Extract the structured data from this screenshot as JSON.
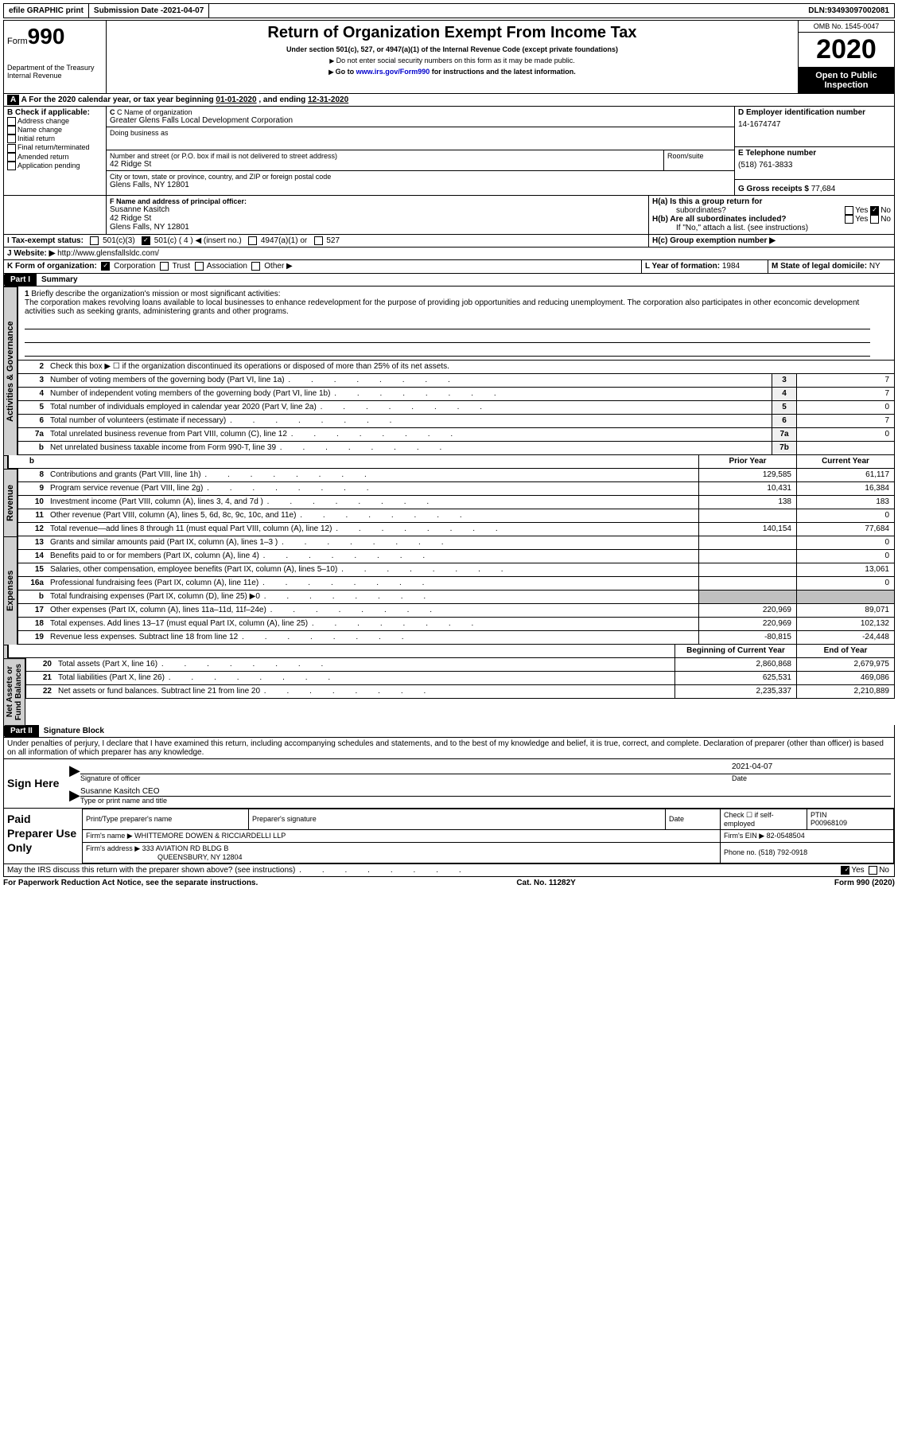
{
  "topbar": {
    "efile": "efile GRAPHIC print",
    "subdate_lbl": "Submission Date - ",
    "subdate": "2021-04-07",
    "dln_lbl": "DLN: ",
    "dln": "93493097002081"
  },
  "header": {
    "form_label": "Form",
    "form_num": "990",
    "dept": "Department of the Treasury\nInternal Revenue",
    "title": "Return of Organization Exempt From Income Tax",
    "sub1": "Under section 501(c), 527, or 4947(a)(1) of the Internal Revenue Code (except private foundations)",
    "sub2": "Do not enter social security numbers on this form as it may be made public.",
    "sub3_pre": "Go to ",
    "sub3_link": "www.irs.gov/Form990",
    "sub3_post": " for instructions and the latest information.",
    "omb": "OMB No. 1545-0047",
    "year": "2020",
    "inspect": "Open to Public Inspection"
  },
  "periodA": {
    "pre": "A   For the 2020 calendar year, or tax year beginning ",
    "begin": "01-01-2020",
    "mid": "  , and ending ",
    "end": "12-31-2020"
  },
  "boxB": {
    "title": "B Check if applicable:",
    "items": [
      "Address change",
      "Name change",
      "Initial return",
      "Final return/terminated",
      "Amended return",
      "Application pending"
    ]
  },
  "boxC": {
    "lbl": "C Name of organization",
    "name": "Greater Glens Falls Local Development Corporation",
    "dba_lbl": "Doing business as",
    "addr_lbl": "Number and street (or P.O. box if mail is not delivered to street address)",
    "room_lbl": "Room/suite",
    "addr": "42 Ridge St",
    "city_lbl": "City or town, state or province, country, and ZIP or foreign postal code",
    "city": "Glens Falls, NY  12801"
  },
  "boxD": {
    "lbl": "D Employer identification number",
    "val": "14-1674747"
  },
  "boxE": {
    "lbl": "E Telephone number",
    "val": "(518) 761-3833"
  },
  "boxG": {
    "lbl": "G Gross receipts $ ",
    "val": "77,684"
  },
  "boxF": {
    "lbl": "F  Name and address of principal officer:",
    "name": "Susanne Kasitch",
    "addr1": "42 Ridge St",
    "addr2": "Glens Falls, NY  12801"
  },
  "boxH": {
    "a": "H(a)  Is this a group return for",
    "a2": "subordinates?",
    "b": "H(b)  Are all subordinates included?",
    "bnote": "If \"No,\" attach a list. (see instructions)",
    "c": "H(c)  Group exemption number ▶",
    "yes": "Yes",
    "no": "No"
  },
  "boxI": {
    "lbl": "I   Tax-exempt status:",
    "c3": "501(c)(3)",
    "c": "501(c) ( 4 ) ◀ (insert no.)",
    "a1": "4947(a)(1) or",
    "s527": "527"
  },
  "boxJ": {
    "lbl": "J   Website: ▶",
    "val": "http://www.glensfallsldc.com/"
  },
  "boxK": {
    "lbl": "K Form of organization:",
    "corp": "Corporation",
    "trust": "Trust",
    "assoc": "Association",
    "other": "Other ▶"
  },
  "boxL": {
    "lbl": "L Year of formation: ",
    "val": "1984"
  },
  "boxM": {
    "lbl": "M State of legal domicile: ",
    "val": "NY"
  },
  "part1": {
    "num": "Part I",
    "title": "Summary"
  },
  "l1": {
    "num": "1",
    "txt": "Briefly describe the organization's mission or most significant activities:",
    "mission": "The corporation makes revolving loans available to local businesses to enhance redevelopment for the purpose of providing job opportunities and reducing unemployment. The corporation also participates in other econcomic development activities such as seeking grants, administering grants and other programs."
  },
  "l2": {
    "num": "2",
    "txt": "Check this box ▶ ☐  if the organization discontinued its operations or disposed of more than 25% of its net assets."
  },
  "lines_ag": [
    {
      "n": "3",
      "t": "Number of voting members of the governing body (Part VI, line 1a)",
      "b": "3",
      "v": "7"
    },
    {
      "n": "4",
      "t": "Number of independent voting members of the governing body (Part VI, line 1b)",
      "b": "4",
      "v": "7"
    },
    {
      "n": "5",
      "t": "Total number of individuals employed in calendar year 2020 (Part V, line 2a)",
      "b": "5",
      "v": "0"
    },
    {
      "n": "6",
      "t": "Total number of volunteers (estimate if necessary)",
      "b": "6",
      "v": "7"
    },
    {
      "n": "7a",
      "t": "Total unrelated business revenue from Part VIII, column (C), line 12",
      "b": "7a",
      "v": "0"
    },
    {
      "n": "b",
      "t": "Net unrelated business taxable income from Form 990-T, line 39",
      "b": "7b",
      "v": ""
    }
  ],
  "colhdr": {
    "prior": "Prior Year",
    "curr": "Current Year",
    "beg": "Beginning of Current Year",
    "end": "End of Year"
  },
  "rev": [
    {
      "n": "8",
      "t": "Contributions and grants (Part VIII, line 1h)",
      "p": "129,585",
      "c": "61,117"
    },
    {
      "n": "9",
      "t": "Program service revenue (Part VIII, line 2g)",
      "p": "10,431",
      "c": "16,384"
    },
    {
      "n": "10",
      "t": "Investment income (Part VIII, column (A), lines 3, 4, and 7d )",
      "p": "138",
      "c": "183"
    },
    {
      "n": "11",
      "t": "Other revenue (Part VIII, column (A), lines 5, 6d, 8c, 9c, 10c, and 11e)",
      "p": "",
      "c": "0"
    },
    {
      "n": "12",
      "t": "Total revenue—add lines 8 through 11 (must equal Part VIII, column (A), line 12)",
      "p": "140,154",
      "c": "77,684"
    }
  ],
  "exp": [
    {
      "n": "13",
      "t": "Grants and similar amounts paid (Part IX, column (A), lines 1–3 )",
      "p": "",
      "c": "0"
    },
    {
      "n": "14",
      "t": "Benefits paid to or for members (Part IX, column (A), line 4)",
      "p": "",
      "c": "0"
    },
    {
      "n": "15",
      "t": "Salaries, other compensation, employee benefits (Part IX, column (A), lines 5–10)",
      "p": "",
      "c": "13,061"
    },
    {
      "n": "16a",
      "t": "Professional fundraising fees (Part IX, column (A), line 11e)",
      "p": "",
      "c": "0"
    },
    {
      "n": "b",
      "t": "Total fundraising expenses (Part IX, column (D), line 25) ▶0",
      "p": "shade",
      "c": "shade"
    },
    {
      "n": "17",
      "t": "Other expenses (Part IX, column (A), lines 11a–11d, 11f–24e)",
      "p": "220,969",
      "c": "89,071"
    },
    {
      "n": "18",
      "t": "Total expenses. Add lines 13–17 (must equal Part IX, column (A), line 25)",
      "p": "220,969",
      "c": "102,132"
    },
    {
      "n": "19",
      "t": "Revenue less expenses. Subtract line 18 from line 12",
      "p": "-80,815",
      "c": "-24,448"
    }
  ],
  "na": [
    {
      "n": "20",
      "t": "Total assets (Part X, line 16)",
      "p": "2,860,868",
      "c": "2,679,975"
    },
    {
      "n": "21",
      "t": "Total liabilities (Part X, line 26)",
      "p": "625,531",
      "c": "469,086"
    },
    {
      "n": "22",
      "t": "Net assets or fund balances. Subtract line 21 from line 20",
      "p": "2,235,337",
      "c": "2,210,889"
    }
  ],
  "vtabs": {
    "ag": "Activities & Governance",
    "rev": "Revenue",
    "exp": "Expenses",
    "na": "Net Assets or\nFund Balances"
  },
  "part2": {
    "num": "Part II",
    "title": "Signature Block",
    "decl": "Under penalties of perjury, I declare that I have examined this return, including accompanying schedules and statements, and to the best of my knowledge and belief, it is true, correct, and complete. Declaration of preparer (other than officer) is based on all information of which preparer has any knowledge."
  },
  "sign": {
    "here": "Sign Here",
    "sig_lbl": "Signature of officer",
    "date_lbl": "Date",
    "date": "2021-04-07",
    "name": "Susanne Kasitch CEO",
    "name_lbl": "Type or print name and title"
  },
  "prep": {
    "title": "Paid Preparer Use Only",
    "pname_lbl": "Print/Type preparer's name",
    "psig_lbl": "Preparer's signature",
    "pdate_lbl": "Date",
    "self_lbl": "Check ☐ if self-employed",
    "ptin_lbl": "PTIN",
    "ptin": "P00968109",
    "firm_lbl": "Firm's name   ▶",
    "firm": "WHITTEMORE DOWEN & RICCIARDELLI LLP",
    "ein_lbl": "Firm's EIN ▶",
    "ein": "82-0548504",
    "addr_lbl": "Firm's address ▶",
    "addr1": "333 AVIATION RD BLDG B",
    "addr2": "QUEENSBURY, NY  12804",
    "phone_lbl": "Phone no. ",
    "phone": "(518) 792-0918"
  },
  "discuss": {
    "txt": "May the IRS discuss this return with the preparer shown above? (see instructions)",
    "yes": "Yes",
    "no": "No"
  },
  "footer": {
    "pra": "For Paperwork Reduction Act Notice, see the separate instructions.",
    "cat": "Cat. No. 11282Y",
    "form": "Form 990 (2020)"
  }
}
